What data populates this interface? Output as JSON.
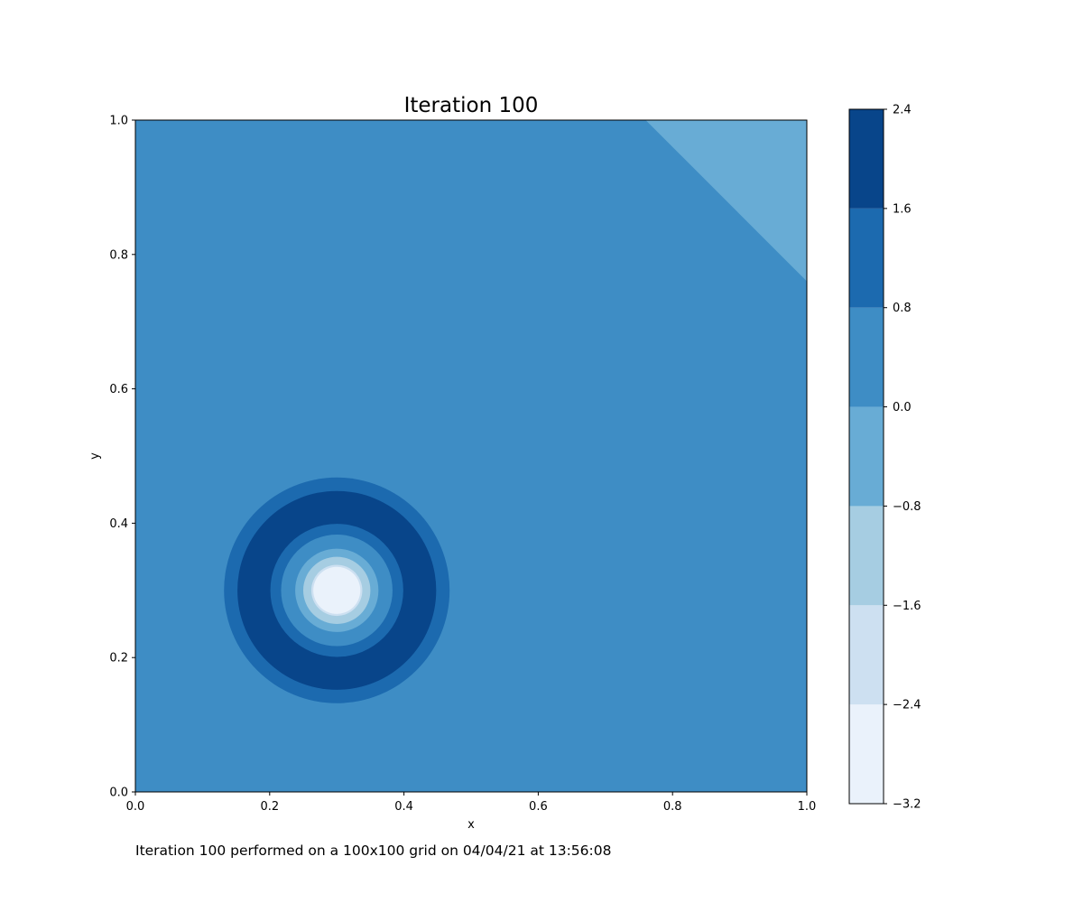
{
  "chart_data": {
    "type": "contourf",
    "title": "Iteration 100",
    "xlabel": "x",
    "ylabel": "y",
    "xlim": [
      0.0,
      1.0
    ],
    "ylim": [
      0.0,
      1.0
    ],
    "x_ticks": [
      "0.0",
      "0.2",
      "0.4",
      "0.6",
      "0.8",
      "1.0"
    ],
    "y_ticks": [
      "0.0",
      "0.2",
      "0.4",
      "0.6",
      "0.8",
      "1.0"
    ],
    "colormap": "Blues",
    "levels": [
      -3.2,
      -2.4,
      -1.6,
      -0.8,
      0.0,
      0.8,
      1.6,
      2.4
    ],
    "colorbar_ticks": [
      "2.4",
      "1.6",
      "0.8",
      "0.0",
      "−0.8",
      "−1.6",
      "−2.4",
      "−3.2"
    ],
    "level_colors": [
      "#eaf2fb",
      "#cde0f1",
      "#a6cde2",
      "#68acd5",
      "#3e8dc5",
      "#1c6aaf",
      "#08458a"
    ],
    "background_band": [
      0.0,
      0.8
    ],
    "features": [
      {
        "kind": "ring-structure",
        "center": [
          0.3,
          0.3
        ],
        "bands_outer_to_inner": [
          {
            "outer_radius": 0.168,
            "band": [
              0.8,
              1.6
            ]
          },
          {
            "outer_radius": 0.148,
            "band": [
              1.6,
              2.4
            ]
          },
          {
            "outer_radius": 0.099,
            "band": [
              0.8,
              1.6
            ]
          },
          {
            "outer_radius": 0.083,
            "band": [
              0.0,
              0.8
            ]
          },
          {
            "outer_radius": 0.062,
            "band": [
              -0.8,
              0.0
            ]
          },
          {
            "outer_radius": 0.05,
            "band": [
              -1.6,
              -0.8
            ]
          },
          {
            "outer_radius": 0.038,
            "band": [
              -2.4,
              -1.6
            ]
          },
          {
            "outer_radius": 0.035,
            "band": [
              -3.2,
              -2.4
            ]
          }
        ]
      },
      {
        "kind": "corner-triangle",
        "vertices": [
          [
            0.76,
            1.0
          ],
          [
            1.0,
            1.0
          ],
          [
            1.0,
            0.76
          ]
        ],
        "band": [
          -0.8,
          0.0
        ]
      }
    ]
  },
  "caption": "Iteration 100 performed on a 100x100 grid on 04/04/21 at 13:56:08"
}
